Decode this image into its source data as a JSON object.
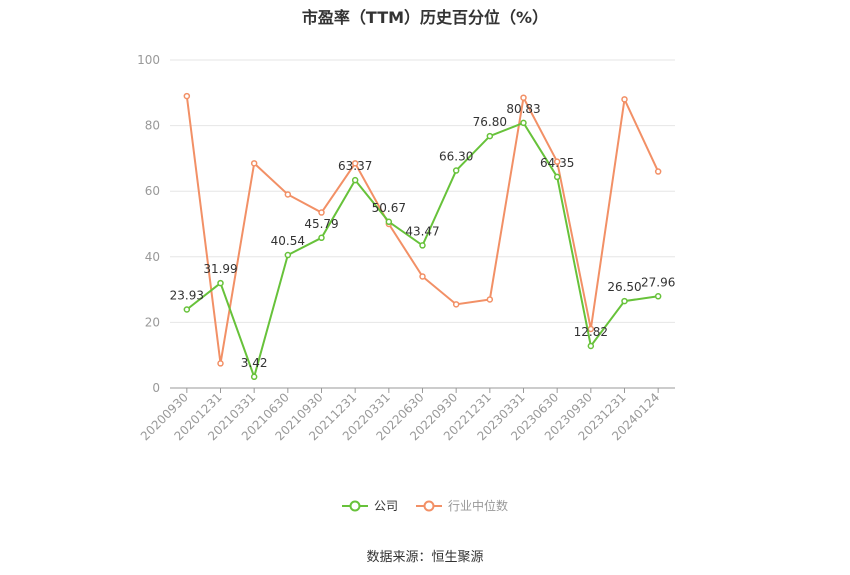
{
  "chart_data": {
    "type": "line",
    "title": "市盈率（TTM）历史百分位（%）",
    "categories": [
      "20200930",
      "20201231",
      "20210331",
      "20210630",
      "20210930",
      "20211231",
      "20220331",
      "20220630",
      "20220930",
      "20221231",
      "20230331",
      "20230630",
      "20230930",
      "20231231",
      "20240124"
    ],
    "series": [
      {
        "name": "公司",
        "color": "#67c23a",
        "values": [
          23.93,
          31.99,
          3.42,
          40.54,
          45.79,
          63.37,
          50.67,
          43.47,
          66.3,
          76.8,
          80.83,
          64.35,
          12.82,
          26.5,
          27.96
        ],
        "labels": [
          "23.93",
          "31.99",
          "3.42",
          "40.54",
          "45.79",
          "63.37",
          "50.67",
          "43.47",
          "66.30",
          "76.80",
          "80.83",
          "64.35",
          "12.82",
          "26.50",
          "27.96"
        ]
      },
      {
        "name": "行业中位数",
        "color": "#f29066",
        "values": [
          89,
          7.5,
          68.5,
          59,
          53.5,
          68.5,
          50,
          34,
          25.5,
          27,
          88.5,
          69,
          18,
          88,
          66
        ]
      }
    ],
    "yticks": [
      "0",
      "20",
      "40",
      "60",
      "80",
      "100"
    ],
    "ylim": [
      0,
      100
    ],
    "grid": true,
    "legend_position": "bottom-center",
    "source": "数据来源：恒生聚源"
  }
}
